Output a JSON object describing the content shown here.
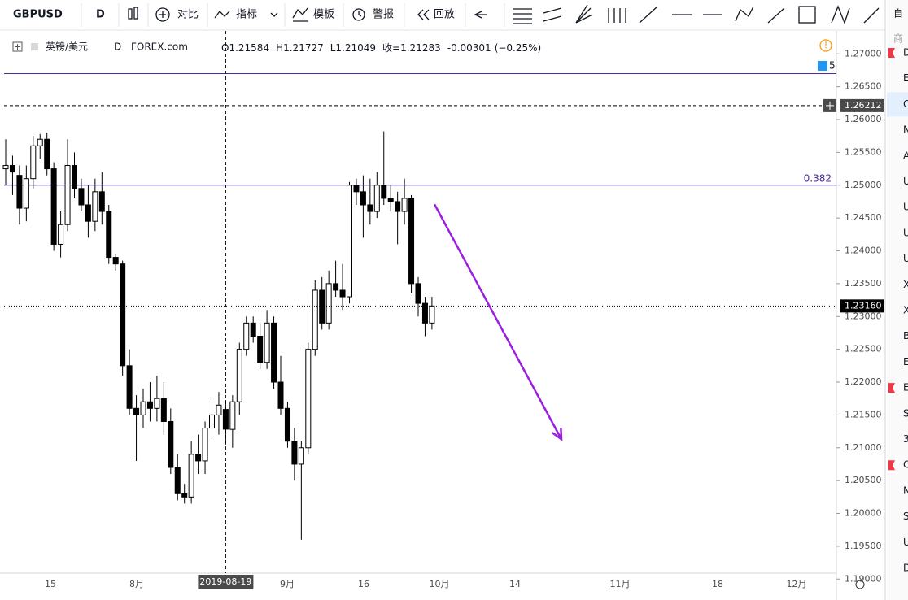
{
  "toolbar": {
    "symbol": "GBPUSD",
    "interval": "D",
    "buttons": [
      "对比",
      "指标",
      "模板",
      "警报",
      "回放"
    ]
  },
  "legend": {
    "name": "英镑/美元",
    "interval": "D",
    "source": "FOREX.com",
    "labels": [
      "O",
      "H",
      "L",
      "收="
    ],
    "change": "-0.00301",
    "change_pct": "(−0.25%)",
    "alert_count": "5"
  },
  "chart_data": {
    "type": "candlestick",
    "up_color": "#ffffff",
    "down_color": "#000000",
    "candles": [
      [
        1.2525,
        1.257,
        1.25,
        1.253
      ],
      [
        1.253,
        1.2545,
        1.2485,
        1.252
      ],
      [
        1.2515,
        1.253,
        1.244,
        1.2465
      ],
      [
        1.2465,
        1.253,
        1.2445,
        1.251
      ],
      [
        1.251,
        1.2575,
        1.2495,
        1.256
      ],
      [
        1.256,
        1.2578,
        1.254,
        1.257
      ],
      [
        1.257,
        1.258,
        1.2515,
        1.2525
      ],
      [
        1.2525,
        1.2535,
        1.24,
        1.241
      ],
      [
        1.241,
        1.246,
        1.239,
        1.244
      ],
      [
        1.244,
        1.257,
        1.243,
        1.253
      ],
      [
        1.253,
        1.255,
        1.248,
        1.2495
      ],
      [
        1.2495,
        1.251,
        1.246,
        1.247
      ],
      [
        1.247,
        1.25,
        1.242,
        1.2445
      ],
      [
        1.2445,
        1.251,
        1.243,
        1.249
      ],
      [
        1.249,
        1.252,
        1.244,
        1.246
      ],
      [
        1.246,
        1.247,
        1.238,
        1.239
      ],
      [
        1.239,
        1.2395,
        1.237,
        1.238
      ],
      [
        1.238,
        1.2385,
        1.221,
        1.2225
      ],
      [
        1.2225,
        1.225,
        1.215,
        1.216
      ],
      [
        1.216,
        1.218,
        1.208,
        1.215
      ],
      [
        1.215,
        1.219,
        1.213,
        1.217
      ],
      [
        1.217,
        1.22,
        1.214,
        1.216
      ],
      [
        1.216,
        1.221,
        1.214,
        1.2175
      ],
      [
        1.2175,
        1.22,
        1.212,
        1.214
      ],
      [
        1.214,
        1.216,
        1.206,
        1.207
      ],
      [
        1.207,
        1.209,
        1.202,
        1.203
      ],
      [
        1.203,
        1.2045,
        1.2015,
        1.2025
      ],
      [
        1.2025,
        1.211,
        1.2015,
        1.209
      ],
      [
        1.209,
        1.212,
        1.206,
        1.208
      ],
      [
        1.208,
        1.214,
        1.206,
        1.213
      ],
      [
        1.213,
        1.2175,
        1.211,
        1.215
      ],
      [
        1.215,
        1.2185,
        1.212,
        1.2165
      ],
      [
        1.21584,
        1.21727,
        1.21049,
        1.21283
      ],
      [
        1.2128,
        1.218,
        1.21,
        1.217
      ],
      [
        1.217,
        1.226,
        1.215,
        1.225
      ],
      [
        1.225,
        1.23,
        1.224,
        1.229
      ],
      [
        1.229,
        1.23,
        1.226,
        1.227
      ],
      [
        1.227,
        1.229,
        1.222,
        1.223
      ],
      [
        1.223,
        1.231,
        1.222,
        1.229
      ],
      [
        1.229,
        1.23,
        1.219,
        1.22
      ],
      [
        1.22,
        1.224,
        1.215,
        1.216
      ],
      [
        1.216,
        1.217,
        1.21,
        1.211
      ],
      [
        1.211,
        1.213,
        1.205,
        1.2075
      ],
      [
        1.2075,
        1.211,
        1.196,
        1.21
      ],
      [
        1.21,
        1.226,
        1.209,
        1.225
      ],
      [
        1.225,
        1.2355,
        1.224,
        1.234
      ],
      [
        1.234,
        1.236,
        1.228,
        1.229
      ],
      [
        1.229,
        1.237,
        1.228,
        1.235
      ],
      [
        1.235,
        1.2385,
        1.233,
        1.234
      ],
      [
        1.234,
        1.238,
        1.231,
        1.233
      ],
      [
        1.233,
        1.2505,
        1.232,
        1.25
      ],
      [
        1.25,
        1.251,
        1.247,
        1.249
      ],
      [
        1.249,
        1.2515,
        1.242,
        1.247
      ],
      [
        1.247,
        1.251,
        1.244,
        1.246
      ],
      [
        1.246,
        1.252,
        1.245,
        1.25
      ],
      [
        1.25,
        1.2582,
        1.247,
        1.248
      ],
      [
        1.248,
        1.25,
        1.246,
        1.2475
      ],
      [
        1.2475,
        1.249,
        1.241,
        1.246
      ],
      [
        1.246,
        1.251,
        1.244,
        1.248
      ],
      [
        1.248,
        1.2485,
        1.2335,
        1.235
      ],
      [
        1.235,
        1.236,
        1.23,
        1.232
      ],
      [
        1.232,
        1.233,
        1.227,
        1.229
      ],
      [
        1.229,
        1.233,
        1.228,
        1.2316
      ]
    ],
    "ylim": [
      1.1909,
      1.2735
    ],
    "yticks": [
      {
        "value": 1.27,
        "label": "1.27000"
      },
      {
        "value": 1.265,
        "label": "1.26500"
      },
      {
        "value": 1.26,
        "label": "1.26000"
      },
      {
        "value": 1.255,
        "label": "1.25500"
      },
      {
        "value": 1.25,
        "label": "1.25000"
      },
      {
        "value": 1.245,
        "label": "1.24500"
      },
      {
        "value": 1.24,
        "label": "1.24000"
      },
      {
        "value": 1.235,
        "label": "1.23500"
      },
      {
        "value": 1.23,
        "label": "1.23000"
      },
      {
        "value": 1.225,
        "label": "1.22500"
      },
      {
        "value": 1.22,
        "label": "1.22000"
      },
      {
        "value": 1.215,
        "label": "1.21500"
      },
      {
        "value": 1.21,
        "label": "1.21000"
      },
      {
        "value": 1.205,
        "label": "1.20500"
      },
      {
        "value": 1.2,
        "label": "1.20000"
      },
      {
        "value": 1.195,
        "label": "1.19500"
      },
      {
        "value": 1.19,
        "label": "1.19000"
      }
    ],
    "xticks": [
      "15",
      "8月",
      "9月",
      "16",
      "10月",
      "14",
      "11月",
      "18",
      "12月"
    ],
    "hlines": [
      {
        "value": 1.267,
        "color": "#4a2a99"
      },
      {
        "value": 1.25,
        "label": "0.382",
        "color": "#4a2a99"
      }
    ],
    "crosshair": {
      "value": 1.26212,
      "x_label": "2019-08-19"
    },
    "last_price": {
      "value": 1.2316,
      "label": "1.23160"
    },
    "arrow": {
      "from": 1.2471,
      "to": 1.2113,
      "color": "#9b1fe0"
    }
  },
  "watchlist": {
    "header": [
      "自",
      "商"
    ],
    "items": [
      "D",
      "E",
      "C",
      "N",
      "A",
      "U",
      "U",
      "U",
      "U",
      "X",
      "X",
      "B",
      "E",
      "E",
      "S",
      "3",
      "C",
      "N",
      "S",
      "U",
      "D"
    ]
  }
}
